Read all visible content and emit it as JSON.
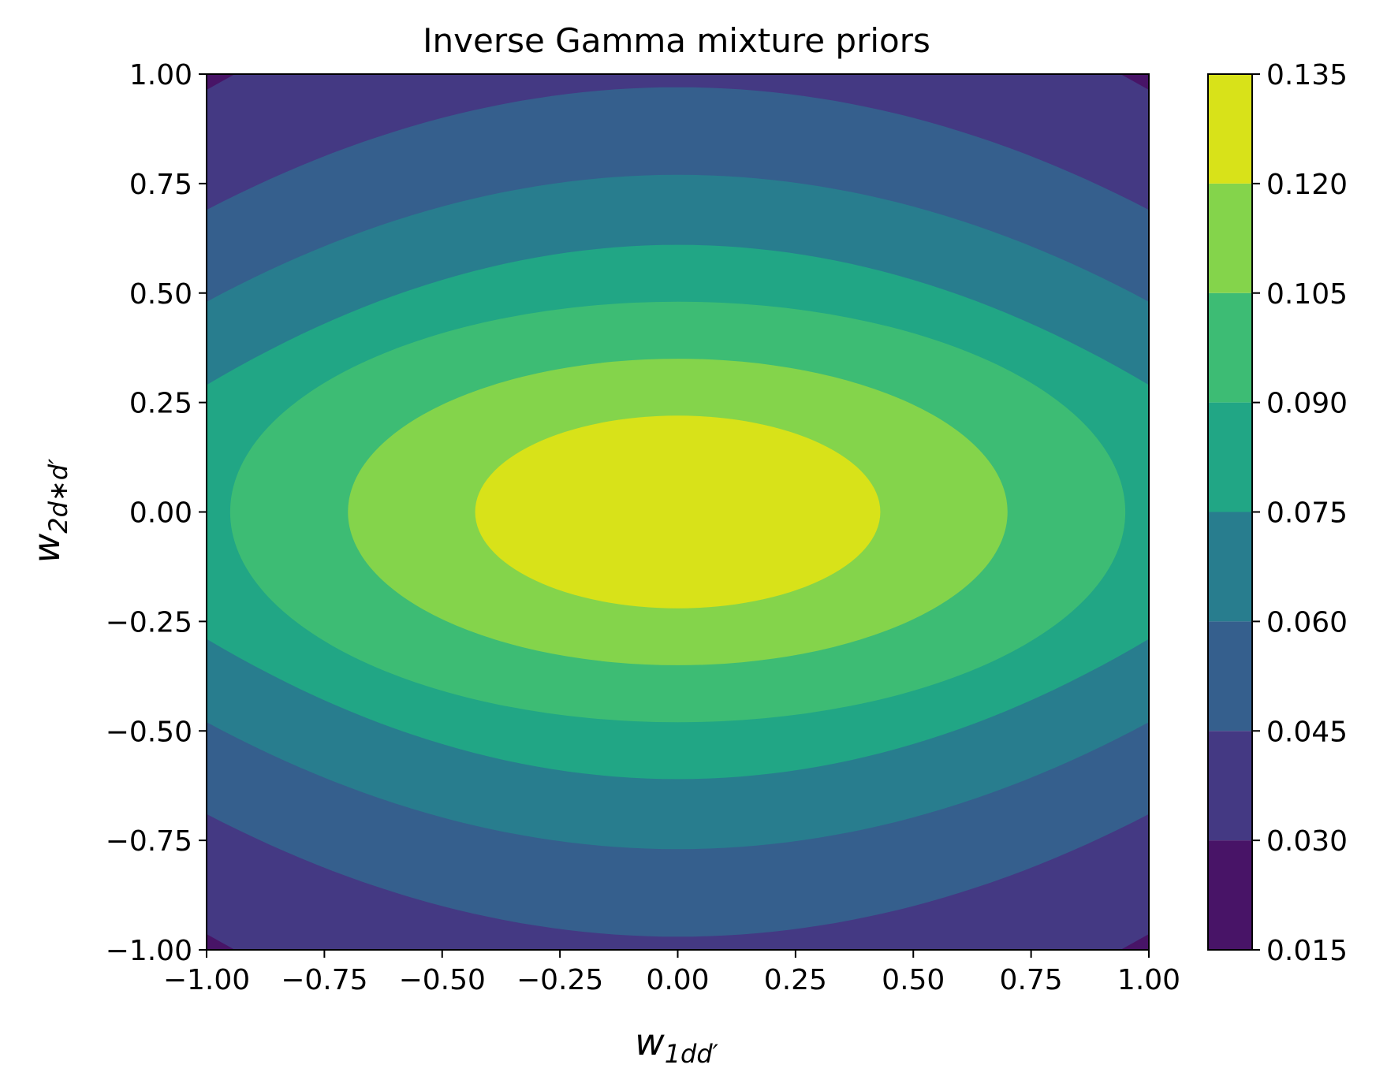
{
  "chart_data": {
    "type": "contourf",
    "title": "Inverse Gamma mixture priors",
    "xlabel": {
      "base": "w",
      "sub": "1dd′"
    },
    "ylabel": {
      "base": "w",
      "sub": "2d∗d′"
    },
    "xlim": [
      -1.0,
      1.0
    ],
    "ylim": [
      -1.0,
      1.0
    ],
    "xticks": [
      "−1.00",
      "−0.75",
      "−0.50",
      "−0.25",
      "0.00",
      "0.25",
      "0.50",
      "0.75",
      "1.00"
    ],
    "yticks": [
      "−1.00",
      "−0.75",
      "−0.50",
      "−0.25",
      "0.00",
      "0.25",
      "0.50",
      "0.75",
      "1.00"
    ],
    "colorbar": {
      "levels": [
        0.015,
        0.03,
        0.045,
        0.06,
        0.075,
        0.09,
        0.105,
        0.12,
        0.135
      ],
      "tick_labels": [
        "0.015",
        "0.030",
        "0.045",
        "0.060",
        "0.075",
        "0.090",
        "0.105",
        "0.120",
        "0.135"
      ],
      "colors": [
        "#481467",
        "#443983",
        "#355f8d",
        "#287d8e",
        "#21a685",
        "#3dbc74",
        "#84d44b",
        "#d8e219"
      ]
    },
    "contour_boundaries": [
      {
        "level": 0.03,
        "x_at_y0": null,
        "y_at_x0": null,
        "corner_only": true
      },
      {
        "level": 0.045,
        "x_at_y0": null,
        "y_at_x0": 0.97,
        "y_at_edge": 0.69
      },
      {
        "level": 0.06,
        "x_at_y0": null,
        "y_at_x0": 0.77,
        "y_at_edge": 0.48
      },
      {
        "level": 0.075,
        "x_at_y0": null,
        "y_at_x0": 0.61,
        "y_at_edge": 0.29
      },
      {
        "level": 0.09,
        "x_at_y0": 0.95,
        "y_at_x0": 0.48
      },
      {
        "level": 0.105,
        "x_at_y0": 0.7,
        "y_at_x0": 0.35
      },
      {
        "level": 0.12,
        "x_at_y0": 0.43,
        "y_at_x0": 0.22
      }
    ],
    "grid": false
  }
}
